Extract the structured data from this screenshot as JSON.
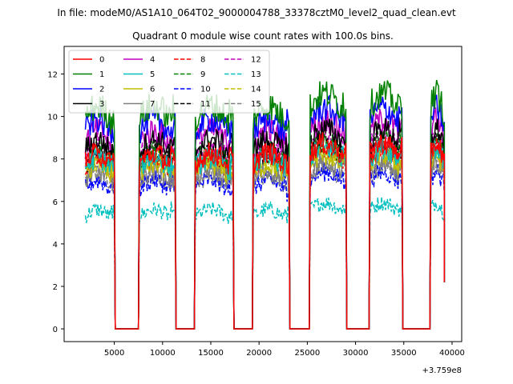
{
  "chart_data": {
    "type": "line",
    "suptitle": "In file: modeM0/AS1A10_064T02_9000004788_33378cztM0_level2_quad_clean.evt",
    "title": "Quadrant 0 module wise count rates with 100.0s bins.",
    "xlabel": "",
    "ylabel": "",
    "x_offset_label": "+3.759e8",
    "xlim": [
      -200,
      41000
    ],
    "ylim": [
      -0.6,
      13.3
    ],
    "xticks": [
      5000,
      10000,
      15000,
      20000,
      25000,
      30000,
      35000,
      40000
    ],
    "xtick_labels": [
      "5000",
      "10000",
      "15000",
      "20000",
      "25000",
      "30000",
      "35000",
      "40000"
    ],
    "yticks": [
      0,
      2,
      4,
      6,
      8,
      10,
      12
    ],
    "ytick_labels": [
      "0",
      "2",
      "4",
      "6",
      "8",
      "10",
      "12"
    ],
    "grid": false,
    "legend_position": "top-left",
    "legend_columns": 4,
    "on_intervals": [
      [
        2000,
        5000
      ],
      [
        7600,
        11300
      ],
      [
        13400,
        17300
      ],
      [
        19400,
        23100
      ],
      [
        25300,
        29000
      ],
      [
        31500,
        34800
      ],
      [
        37800,
        39200
      ]
    ],
    "off_value": 0,
    "bin_width_s": 100,
    "series": [
      {
        "name": "0",
        "color": "#ff0000",
        "dash": "solid",
        "level": 7.8
      },
      {
        "name": "1",
        "color": "#008000",
        "dash": "solid",
        "level": 9.9
      },
      {
        "name": "2",
        "color": "#0000ff",
        "dash": "solid",
        "level": 9.3
      },
      {
        "name": "3",
        "color": "#000000",
        "dash": "solid",
        "level": 8.4
      },
      {
        "name": "4",
        "color": "#bf00bf",
        "dash": "solid",
        "level": 8.8
      },
      {
        "name": "5",
        "color": "#00bfbf",
        "dash": "solid",
        "level": 7.6
      },
      {
        "name": "6",
        "color": "#bfbf00",
        "dash": "solid",
        "level": 7.3
      },
      {
        "name": "7",
        "color": "#808080",
        "dash": "solid",
        "level": 7.0
      },
      {
        "name": "8",
        "color": "#ff0000",
        "dash": "dashed",
        "level": 7.6
      },
      {
        "name": "9",
        "color": "#008000",
        "dash": "dashed",
        "level": 7.9
      },
      {
        "name": "10",
        "color": "#0000ff",
        "dash": "dashed",
        "level": 6.6
      },
      {
        "name": "11",
        "color": "#000000",
        "dash": "dashed",
        "level": 7.8
      },
      {
        "name": "12",
        "color": "#bf00bf",
        "dash": "dashed",
        "level": 8.1
      },
      {
        "name": "13",
        "color": "#00bfbf",
        "dash": "dashed",
        "level": 5.3
      },
      {
        "name": "14",
        "color": "#bfbf00",
        "dash": "dashed",
        "level": 7.5
      },
      {
        "name": "15",
        "color": "#808080",
        "dash": "dashed",
        "level": 6.8
      }
    ]
  }
}
